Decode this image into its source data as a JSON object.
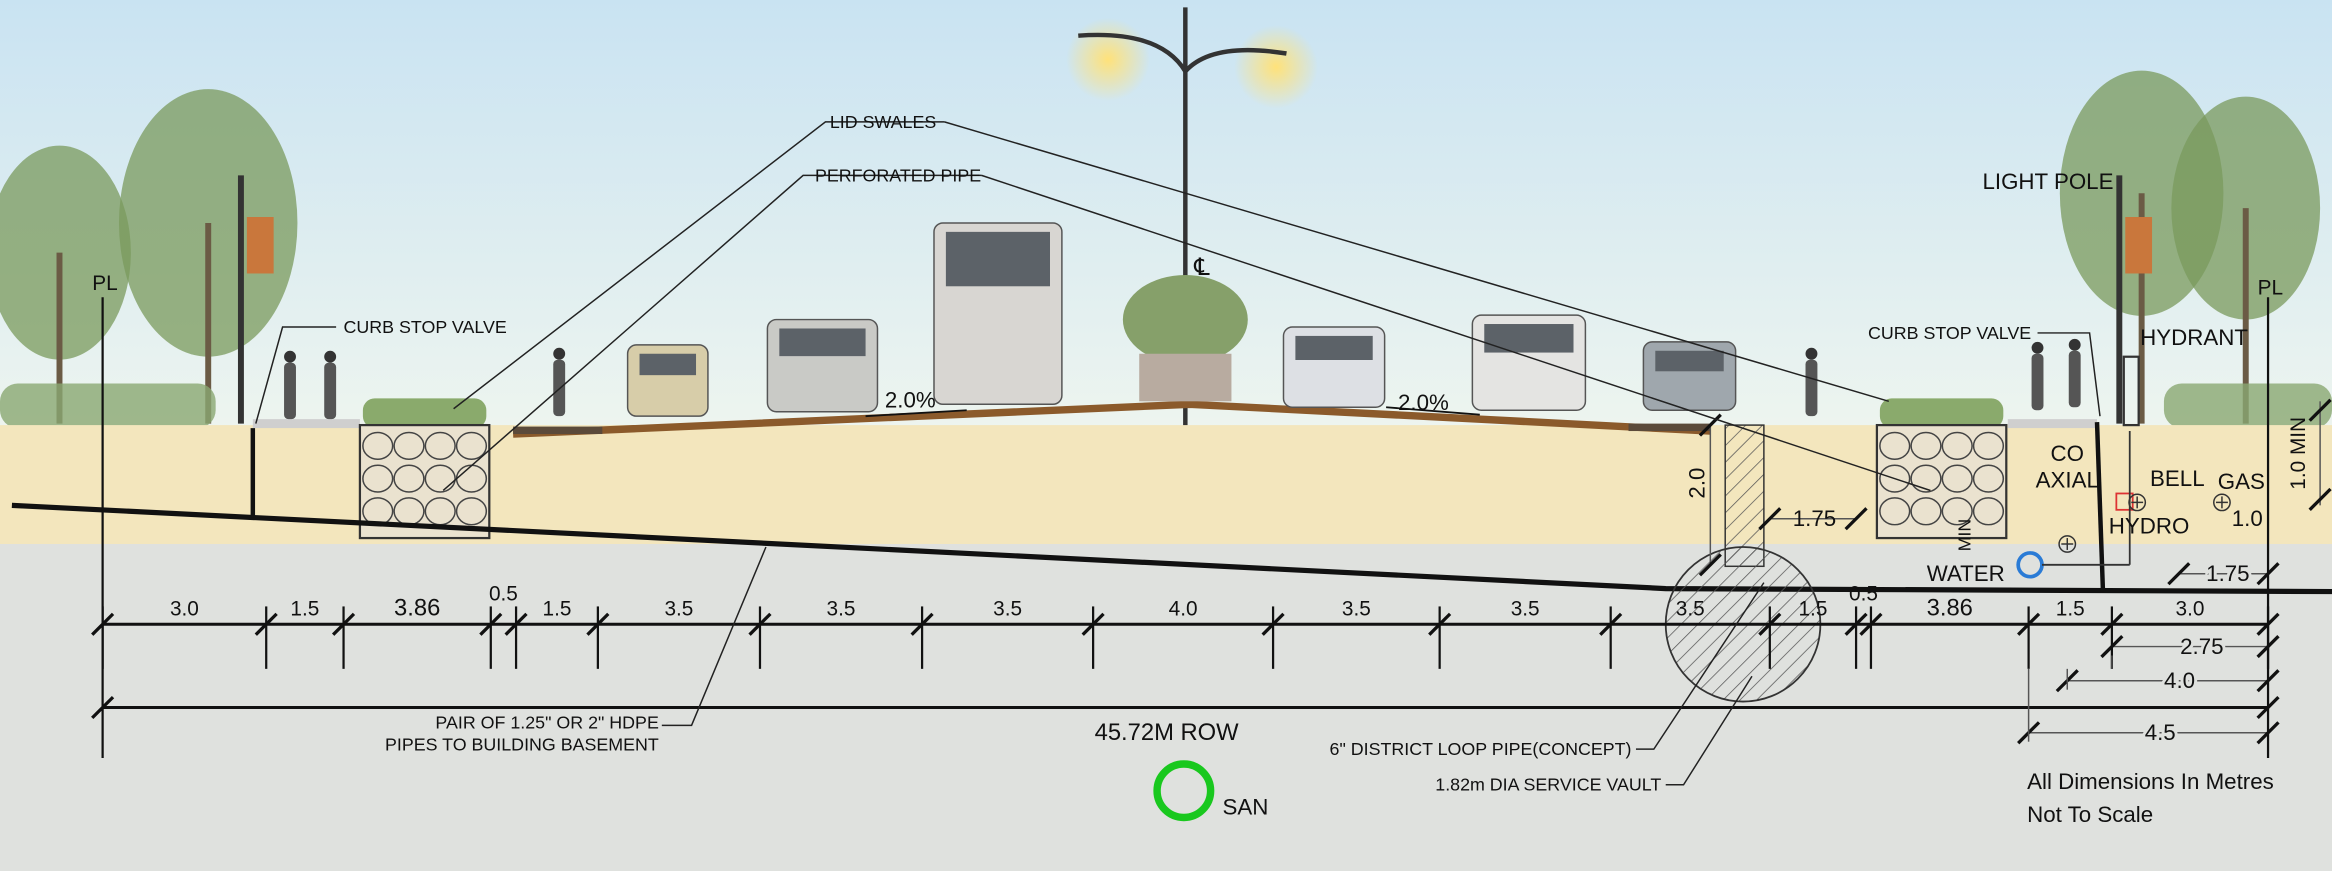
{
  "labels": {
    "lid_swales": "LID SWALES",
    "perforated_pipe": "PERFORATED PIPE",
    "curb_stop_valve_left": "CURB STOP VALVE",
    "curb_stop_valve_right": "CURB STOP VALVE",
    "light_pole": "LIGHT  POLE",
    "hydrant": "HYDRANT",
    "property_line_left": "PL",
    "property_line_right": "PL",
    "centerline": "℄",
    "slope_left": "2.0%",
    "slope_right": "2.0%",
    "hdpe_pipes": [
      "PAIR OF 1.25\" OR 2\" HDPE",
      "PIPES TO BUILDING BASEMENT"
    ],
    "district_loop": "6\" DISTRICT LOOP PIPE(CONCEPT)",
    "service_vault": "1.82m DIA SERVICE VAULT",
    "row": "45.72M ROW",
    "san": "SAN",
    "notes": [
      "All Dimensions In Metres",
      "Not To Scale"
    ]
  },
  "utilities": {
    "co_axial": [
      "CO",
      "AXIAL"
    ],
    "bell": "BELL",
    "gas": "GAS",
    "hydro": "HYDRO",
    "water": "WATER"
  },
  "vertical_dimensions": {
    "vault_depth": "2.0",
    "vault_offset": "1.75",
    "swale_min": "MIN",
    "gas_depth": "1.0",
    "right_min": "1.0 MIN",
    "hydro_offset": "1.75"
  },
  "dimensions": {
    "row": [
      "3.0",
      "1.5",
      "3.86",
      "0.5",
      "1.5",
      "3.5",
      "3.5",
      "3.5",
      "4.0",
      "3.5",
      "3.5",
      "3.5",
      "1.5",
      "0.5",
      "3.86",
      "1.5",
      "3.0"
    ],
    "right": [
      "2.75",
      "4.0",
      "4.5"
    ]
  }
}
